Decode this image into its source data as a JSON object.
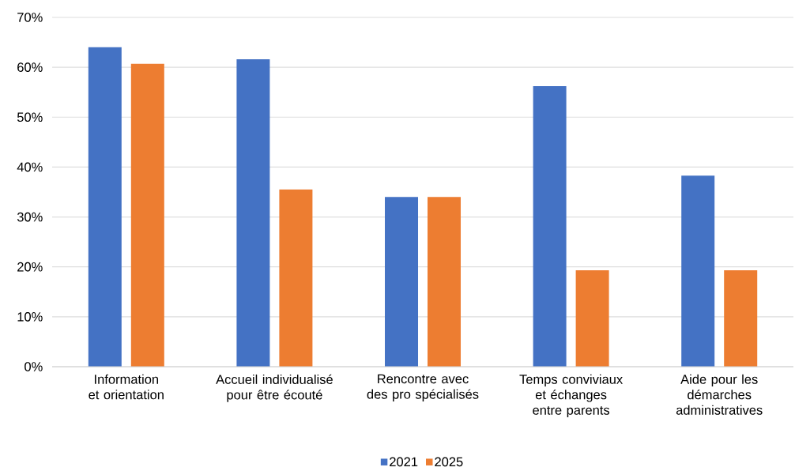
{
  "chart_data": {
    "type": "bar",
    "categories": [
      "Information et orientation",
      "Accueil individualisé pour être écouté",
      "Rencontre avec des pro spécialisés",
      "Temps conviviaux et échanges entre parents",
      "Aide pour les démarches administratives"
    ],
    "series": [
      {
        "name": "2021",
        "color": "#4472c4",
        "values": [
          64.0,
          61.6,
          34.0,
          56.2,
          38.3
        ]
      },
      {
        "name": "2025",
        "color": "#ed7d31",
        "values": [
          60.7,
          35.5,
          34.0,
          19.3,
          19.3
        ]
      }
    ],
    "ylim": [
      0,
      70
    ],
    "yticks": [
      {
        "value": 0,
        "label": "0%"
      },
      {
        "value": 10,
        "label": "10%"
      },
      {
        "value": 20,
        "label": "20%"
      },
      {
        "value": 30,
        "label": "30%"
      },
      {
        "value": 40,
        "label": "40%"
      },
      {
        "value": 50,
        "label": "50%"
      },
      {
        "value": 60,
        "label": "60%"
      },
      {
        "value": 70,
        "label": "70%"
      }
    ],
    "grid": "y",
    "legend": "bottom"
  }
}
